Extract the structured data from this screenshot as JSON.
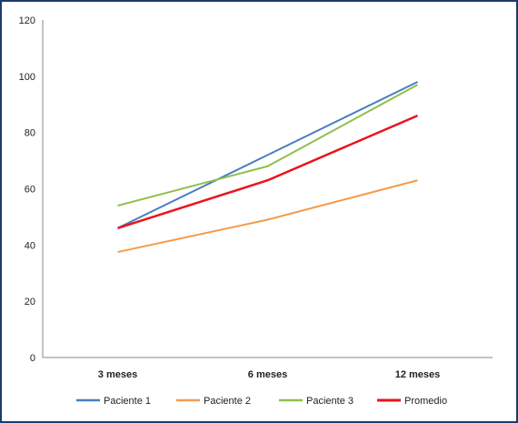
{
  "chart_data": {
    "type": "line",
    "categories": [
      "3 meses",
      "6 meses",
      "12 meses"
    ],
    "series": [
      {
        "name": "Paciente 1",
        "values": [
          46,
          72,
          98
        ],
        "color": "#4a7ebf"
      },
      {
        "name": "Paciente 2",
        "values": [
          37.5,
          49,
          63
        ],
        "color": "#f59b4c"
      },
      {
        "name": "Paciente 3",
        "values": [
          54,
          68,
          97
        ],
        "color": "#8fbf4a"
      },
      {
        "name": "Promedio",
        "values": [
          46,
          63,
          86
        ],
        "color": "#e8141a"
      }
    ],
    "ylim": [
      0,
      120
    ],
    "yticks": [
      "0",
      "20",
      "40",
      "60",
      "80",
      "100",
      "120"
    ],
    "title": "",
    "xlabel": "",
    "ylabel": "",
    "grid": false,
    "legend_position": "bottom"
  }
}
